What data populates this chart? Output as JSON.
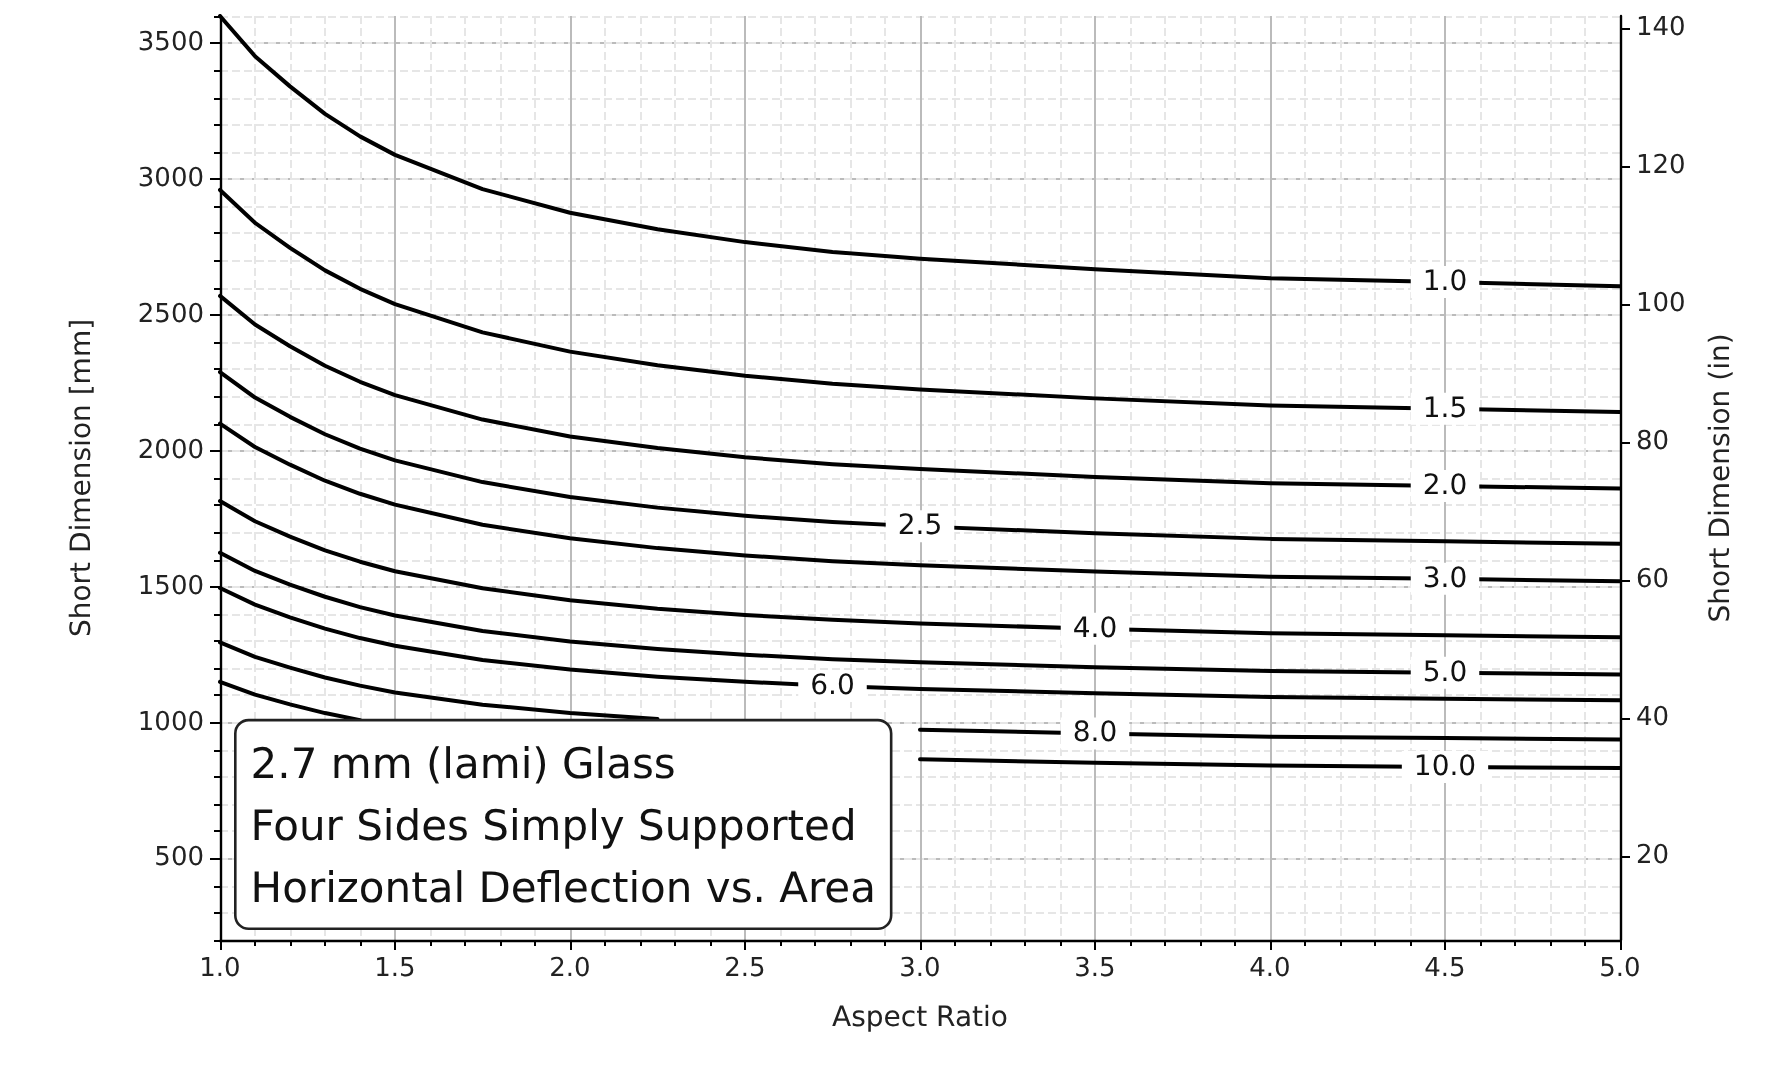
{
  "chart_data": {
    "type": "line",
    "xlabel": "Aspect Ratio",
    "ylabel": "Short Dimension [mm]",
    "y2label": "Short Dimension (in)",
    "annotations": [
      "2.7 mm (lami) Glass",
      "Four Sides Simply Supported",
      "Horizontal Deflection vs. Area"
    ],
    "x": [
      1,
      1.1,
      1.2,
      1.3,
      1.4,
      1.5,
      1.75,
      2,
      2.25,
      2.5,
      2.75,
      3,
      3.5,
      4,
      4.5,
      5
    ],
    "xlim": [
      1,
      5
    ],
    "xticks": [
      {
        "value": 1,
        "label": "1.0"
      },
      1.5,
      {
        "value": 2,
        "label": "2.0"
      },
      2.5,
      {
        "value": 3,
        "label": "3.0"
      },
      3.5,
      {
        "value": 4,
        "label": "4.0"
      },
      4.5,
      {
        "value": 5,
        "label": "5.0"
      }
    ],
    "ylim": [
      200,
      3600
    ],
    "yticks": [
      500,
      1000,
      1500,
      2000,
      2500,
      3000,
      3500
    ],
    "y2lim": [
      7.87,
      141.73
    ],
    "y2ticks": [
      20,
      40,
      60,
      80,
      100,
      120,
      140
    ],
    "grid": true,
    "series": [
      {
        "name": "1.0",
        "color": "#000000",
        "values": [
          3600,
          3452,
          3341,
          3240,
          3157,
          3089,
          2963,
          2876,
          2815,
          2768,
          2732,
          2707,
          2668,
          2635,
          2621,
          2606
        ]
      },
      {
        "name": "1.5",
        "color": "#000000",
        "values": [
          2960,
          2839,
          2747,
          2664,
          2596,
          2540,
          2436,
          2365,
          2315,
          2276,
          2247,
          2226,
          2193,
          2167,
          2155,
          2143
        ]
      },
      {
        "name": "2.0",
        "color": "#000000",
        "values": [
          2570,
          2465,
          2385,
          2313,
          2254,
          2205,
          2115,
          2053,
          2010,
          1976,
          1951,
          1933,
          1904,
          1881,
          1871,
          1861
        ]
      },
      {
        "name": "2.5",
        "color": "#000000",
        "values": [
          2290,
          2196,
          2125,
          2061,
          2008,
          1965,
          1885,
          1830,
          1791,
          1761,
          1738,
          1722,
          1697,
          1676,
          1667,
          1658
        ]
      },
      {
        "name": "3.0",
        "color": "#000000",
        "values": [
          2100,
          2014,
          1949,
          1890,
          1842,
          1802,
          1728,
          1678,
          1642,
          1615,
          1594,
          1579,
          1556,
          1537,
          1529,
          1520
        ]
      },
      {
        "name": "4.0",
        "color": "#000000",
        "values": [
          1815,
          1741,
          1684,
          1634,
          1592,
          1557,
          1494,
          1450,
          1419,
          1396,
          1378,
          1365,
          1345,
          1329,
          1321,
          1314
        ]
      },
      {
        "name": "5.0",
        "color": "#000000",
        "values": [
          1625,
          1558,
          1508,
          1463,
          1425,
          1394,
          1337,
          1298,
          1271,
          1250,
          1233,
          1222,
          1204,
          1190,
          1183,
          1177
        ]
      },
      {
        "name": "6.0",
        "color": "#000000",
        "values": [
          1495,
          1434,
          1387,
          1346,
          1311,
          1283,
          1230,
          1195,
          1169,
          1150,
          1135,
          1124,
          1108,
          1094,
          1088,
          1082
        ]
      },
      {
        "name": "8.0",
        "color": "#000000",
        "values": [
          1295,
          1242,
          1202,
          1166,
          1136,
          1111,
          1066,
          1035,
          1013,
          null,
          null,
          974,
          960,
          948,
          943,
          938
        ]
      },
      {
        "name": "10.0",
        "color": "#000000",
        "values": [
          1150,
          1103,
          1067,
          1035,
          1009,
          null,
          null,
          null,
          null,
          null,
          null,
          865,
          852,
          842,
          837,
          833
        ]
      }
    ]
  }
}
